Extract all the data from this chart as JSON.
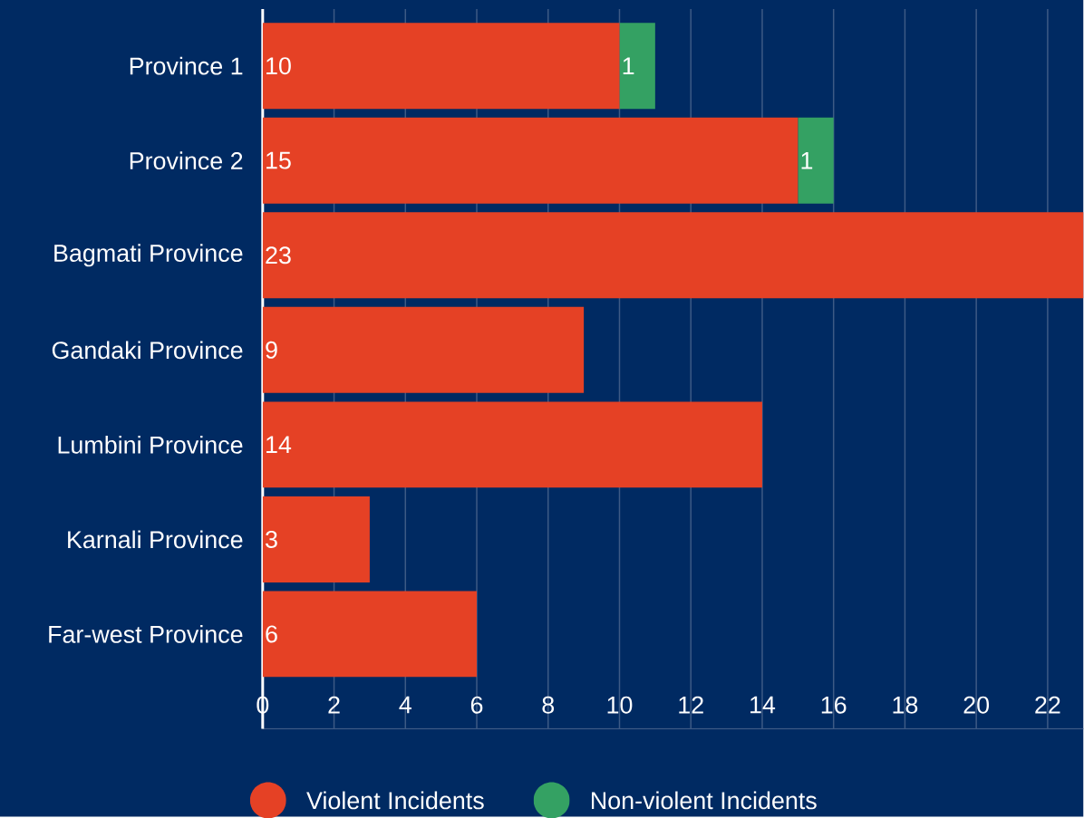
{
  "chart_data": {
    "type": "bar",
    "orientation": "horizontal",
    "stacked": true,
    "categories": [
      "Province 1",
      "Province 2",
      "Bagmati Province",
      "Gandaki Province",
      "Lumbini Province",
      "Karnali Province",
      "Far-west Province"
    ],
    "series": [
      {
        "name": "Violent Incidents",
        "color": "#e54125",
        "values": [
          10,
          15,
          23,
          9,
          14,
          3,
          6
        ]
      },
      {
        "name": "Non-violent Incidents",
        "color": "#34a163",
        "values": [
          1,
          1,
          null,
          null,
          null,
          null,
          null
        ]
      }
    ],
    "xlim": [
      0,
      23
    ],
    "xticks": [
      0,
      2,
      4,
      6,
      8,
      10,
      12,
      14,
      16,
      18,
      20,
      22
    ],
    "grid": "x",
    "legend": "bottom",
    "data_labels": true
  }
}
